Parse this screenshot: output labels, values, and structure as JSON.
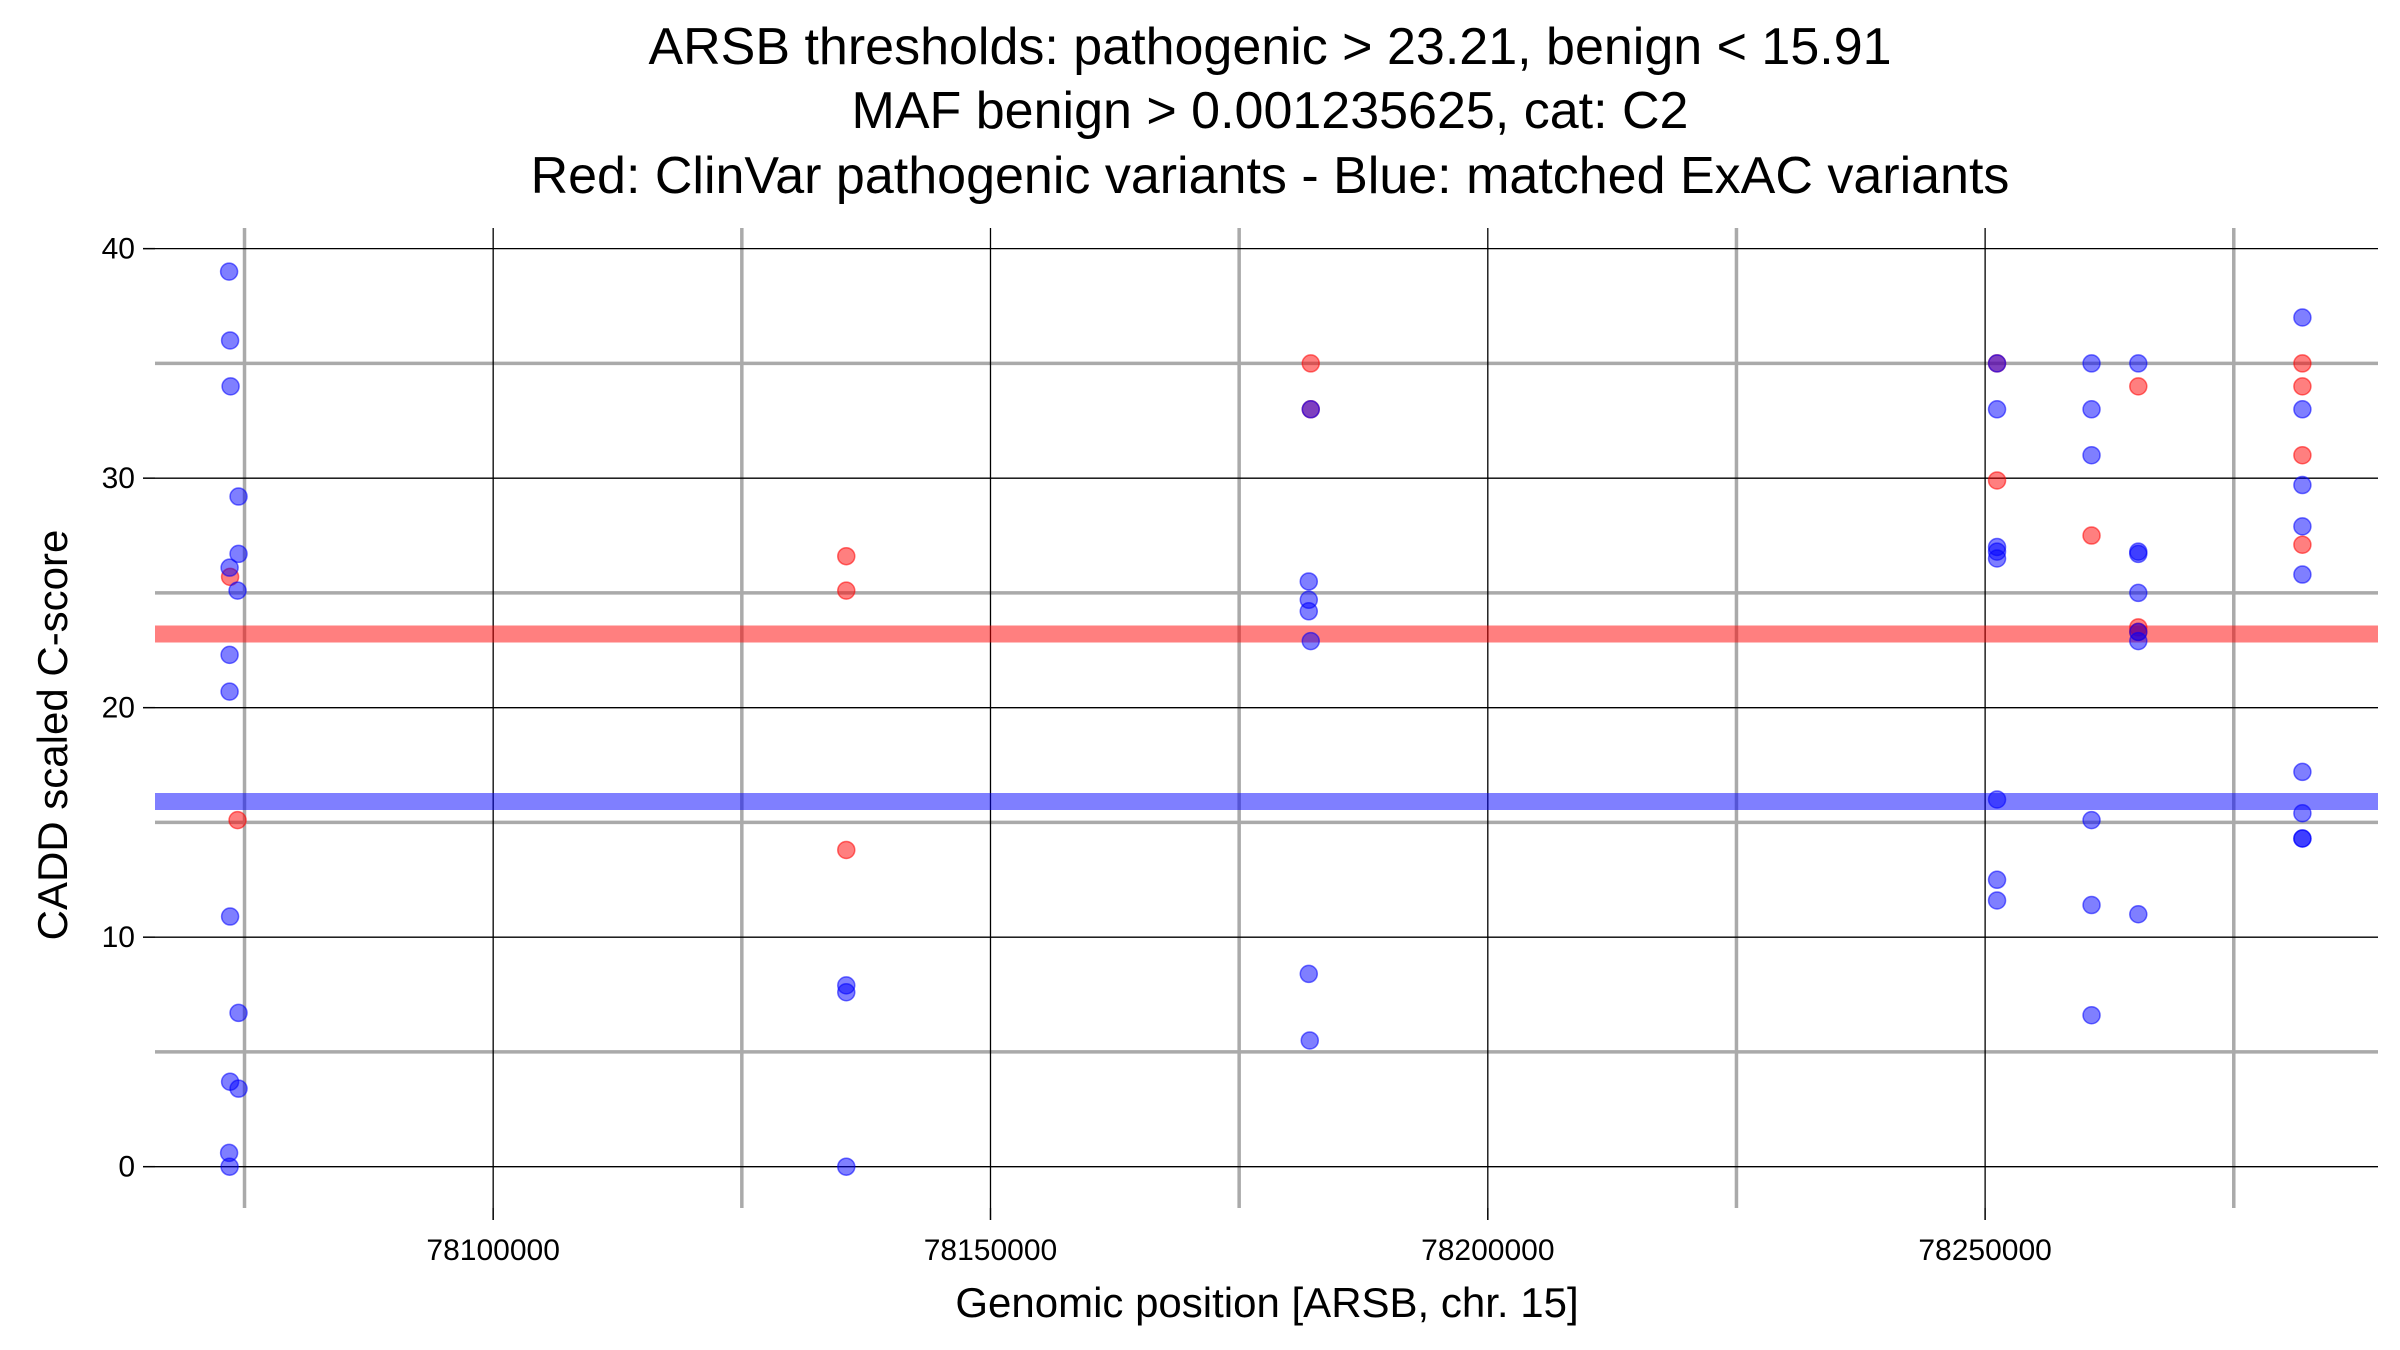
{
  "chart_data": {
    "type": "scatter",
    "title_lines": [
      "ARSB thresholds: pathogenic > 23.21, benign < 15.91",
      "MAF benign > 0.001235625, cat: C2",
      "Red: ClinVar pathogenic variants - Blue: matched ExAC variants"
    ],
    "xlabel": "Genomic position [ARSB, chr. 15]",
    "ylabel": "CADD scaled C-score",
    "xlim": [
      78066000,
      78289500
    ],
    "ylim": [
      -1.8,
      40.9
    ],
    "x_ticks": [
      78100000,
      78150000,
      78200000,
      78250000
    ],
    "x_tick_labels": [
      "78100000",
      "78150000",
      "78200000",
      "78250000"
    ],
    "y_ticks": [
      0,
      10,
      20,
      30,
      40
    ],
    "y_tick_labels": [
      "0",
      "10",
      "20",
      "30",
      "40"
    ],
    "x_minor_gridlines": [
      78075000,
      78125000,
      78175000,
      78225000,
      78275000
    ],
    "y_minor_gridlines": [
      5,
      15,
      25,
      35
    ],
    "grid": true,
    "thresholds": [
      {
        "name": "pathogenic",
        "value": 23.21,
        "color": "#ff0000"
      },
      {
        "name": "benign",
        "value": 15.91,
        "color": "#0000ff"
      }
    ],
    "colors": {
      "pathogenic": "#ff0000",
      "benign": "#0000ff"
    },
    "series": [
      {
        "name": "ClinVar pathogenic variants",
        "color": "#ff0000",
        "points": [
          [
            78073550,
            25.7
          ],
          [
            78074300,
            15.1
          ],
          [
            78135500,
            26.6
          ],
          [
            78135500,
            25.1
          ],
          [
            78135500,
            13.8
          ],
          [
            78182200,
            35.0
          ],
          [
            78182200,
            33.0
          ],
          [
            78251200,
            35.0
          ],
          [
            78251200,
            29.9
          ],
          [
            78260700,
            27.5
          ],
          [
            78265400,
            34.0
          ],
          [
            78265400,
            23.5
          ],
          [
            78265400,
            23.3
          ],
          [
            78281900,
            35.0
          ],
          [
            78281900,
            34.0
          ],
          [
            78281900,
            31.0
          ],
          [
            78281900,
            27.1
          ]
        ]
      },
      {
        "name": "matched ExAC variants",
        "color": "#0000ff",
        "points": [
          [
            78073450,
            39.0
          ],
          [
            78073550,
            36.0
          ],
          [
            78073600,
            34.0
          ],
          [
            78074400,
            29.2
          ],
          [
            78074400,
            26.7
          ],
          [
            78073500,
            26.1
          ],
          [
            78074300,
            25.1
          ],
          [
            78073500,
            22.3
          ],
          [
            78073500,
            20.7
          ],
          [
            78073550,
            10.9
          ],
          [
            78074400,
            6.7
          ],
          [
            78073550,
            3.7
          ],
          [
            78074400,
            3.4
          ],
          [
            78073450,
            0.6
          ],
          [
            78073500,
            0.0
          ],
          [
            78135500,
            7.9
          ],
          [
            78135500,
            7.6
          ],
          [
            78135500,
            0.0
          ],
          [
            78182000,
            25.5
          ],
          [
            78182000,
            24.7
          ],
          [
            78182000,
            24.2
          ],
          [
            78182200,
            22.9
          ],
          [
            78182000,
            8.4
          ],
          [
            78182100,
            5.5
          ],
          [
            78182200,
            33.0
          ],
          [
            78251200,
            35.0
          ],
          [
            78251200,
            33.0
          ],
          [
            78251200,
            27.0
          ],
          [
            78251200,
            26.8
          ],
          [
            78251200,
            26.5
          ],
          [
            78251200,
            16.0
          ],
          [
            78251200,
            12.5
          ],
          [
            78251200,
            11.6
          ],
          [
            78260700,
            35.0
          ],
          [
            78260700,
            33.0
          ],
          [
            78260700,
            31.0
          ],
          [
            78260700,
            15.1
          ],
          [
            78260700,
            11.4
          ],
          [
            78260700,
            6.6
          ],
          [
            78265400,
            35.0
          ],
          [
            78265400,
            26.8
          ],
          [
            78265400,
            26.7
          ],
          [
            78265400,
            25.0
          ],
          [
            78265400,
            23.3
          ],
          [
            78265400,
            22.9
          ],
          [
            78265400,
            11.0
          ],
          [
            78281900,
            37.0
          ],
          [
            78281900,
            33.0
          ],
          [
            78281900,
            29.7
          ],
          [
            78281900,
            27.9
          ],
          [
            78281900,
            25.8
          ],
          [
            78281900,
            17.2
          ],
          [
            78281900,
            15.4
          ],
          [
            78281900,
            14.3
          ],
          [
            78281900,
            14.3
          ]
        ]
      }
    ]
  }
}
